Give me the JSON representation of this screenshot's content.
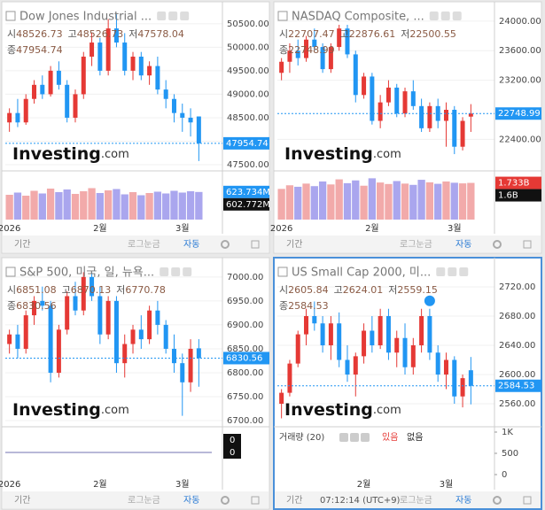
{
  "chart_data": [
    {
      "type": "candlestick",
      "title": "Dow Jones Industrial ...",
      "ohlc_names": [
        "시",
        "고",
        "저",
        "종"
      ],
      "ohlc_values": [
        48526.73,
        48526.73,
        47578.04,
        47954.74
      ],
      "categories": [
        "2026",
        null,
        null,
        null,
        null,
        null,
        null,
        null,
        null,
        null,
        null,
        "2월",
        null,
        null,
        null,
        null,
        null,
        null,
        null,
        null,
        null,
        "3월",
        null,
        null
      ],
      "open": [
        48400,
        48600,
        48400,
        48900,
        49200,
        49000,
        49500,
        49200,
        48500,
        49000,
        49800,
        50100,
        49500,
        50400,
        50100,
        49500,
        49800,
        49400,
        49600,
        49100,
        48900,
        48600,
        48500,
        48526.73
      ],
      "high": [
        48700,
        48900,
        49000,
        49300,
        49400,
        49600,
        49700,
        49300,
        49100,
        49900,
        50300,
        50200,
        50600,
        50700,
        50300,
        49900,
        49900,
        49700,
        49800,
        49300,
        49000,
        48800,
        48700,
        48526.73
      ],
      "low": [
        48200,
        48300,
        48350,
        48800,
        48900,
        48950,
        49100,
        48400,
        48400,
        48900,
        49600,
        49400,
        49400,
        50000,
        49400,
        49300,
        49300,
        49200,
        49000,
        48700,
        48400,
        48200,
        48100,
        47578.04
      ],
      "close": [
        48600,
        48400,
        48900,
        49200,
        49000,
        49500,
        49200,
        48500,
        49000,
        49800,
        50100,
        49500,
        50400,
        50100,
        49500,
        49800,
        49400,
        49600,
        49100,
        48900,
        48600,
        48500,
        48400,
        47954.74
      ],
      "ylim": [
        47425,
        50817
      ],
      "yticks": [
        {
          "value": 50500,
          "label": "50500.00"
        },
        {
          "value": 50000,
          "label": "50000.00"
        },
        {
          "value": 49500,
          "label": "49500.00"
        },
        {
          "value": 49000,
          "label": "49000.00"
        },
        {
          "value": 48500,
          "label": "48500.00"
        },
        {
          "value": 48000,
          "label": "48000.00"
        },
        {
          "value": 47500,
          "label": "47500.00"
        }
      ],
      "price_label": 47954.74,
      "price_label_color": "#2196f3",
      "up_color": "#e53935",
      "down_color": "#2196f3",
      "volume": [
        560000000,
        610000000,
        540000000,
        650000000,
        590000000,
        700000000,
        620000000,
        680000000,
        580000000,
        640000000,
        710000000,
        600000000,
        660000000,
        690000000,
        570000000,
        620000000,
        550000000,
        600000000,
        630000000,
        590000000,
        650000000,
        610000000,
        640000000,
        623734000
      ],
      "volume_ylim": [
        0,
        1100000000
      ],
      "volume_markers": [
        623734000,
        602772000
      ],
      "volume_marker_labels": [
        "623.734M",
        "602.772M"
      ],
      "volume_marker_colors": [
        "#2196f3",
        "#111111"
      ]
    },
    {
      "type": "candlestick",
      "title": "NASDAQ Composite, ...",
      "ohlc_names": [
        "시",
        "고",
        "저",
        "종"
      ],
      "ohlc_values": [
        22707.47,
        22876.61,
        22500.55,
        22748.99
      ],
      "categories": [
        "2026",
        null,
        null,
        null,
        null,
        null,
        null,
        null,
        null,
        null,
        null,
        "2월",
        null,
        null,
        null,
        null,
        null,
        null,
        null,
        null,
        null,
        "3월",
        null,
        null
      ],
      "open": [
        23300,
        23450,
        23600,
        23500,
        23750,
        23650,
        23350,
        23650,
        23900,
        23550,
        23000,
        23250,
        22650,
        22900,
        23100,
        22750,
        23050,
        22850,
        22550,
        22850,
        22650,
        22800,
        22300,
        22707.47
      ],
      "high": [
        23500,
        23700,
        23750,
        23800,
        23900,
        23700,
        23700,
        23950,
        23950,
        23600,
        23300,
        23300,
        23000,
        23200,
        23150,
        23100,
        23200,
        22950,
        22900,
        22950,
        22900,
        22850,
        22700,
        22876.61
      ],
      "low": [
        23200,
        23300,
        23400,
        23450,
        23600,
        23300,
        23300,
        23600,
        23500,
        22900,
        22950,
        22600,
        22550,
        22850,
        22700,
        22700,
        22800,
        22500,
        22500,
        22550,
        22300,
        22200,
        22250,
        22500.55
      ],
      "close": [
        23450,
        23600,
        23500,
        23750,
        23650,
        23350,
        23650,
        23900,
        23550,
        23000,
        23250,
        22650,
        22900,
        23100,
        22750,
        23050,
        22850,
        22550,
        22850,
        22650,
        22800,
        22300,
        22650,
        22748.99
      ],
      "ylim": [
        22009,
        24166
      ],
      "yticks": [
        {
          "value": 24000,
          "label": "24000.00"
        },
        {
          "value": 23600,
          "label": "23600.00"
        },
        {
          "value": 23200,
          "label": "23200.00"
        },
        {
          "value": 22400,
          "label": "22400.00"
        }
      ],
      "price_label": 22748.99,
      "price_label_color": "#2196f3",
      "up_color": "#e53935",
      "down_color": "#2196f3",
      "volume": [
        1450000000,
        1620000000,
        1550000000,
        1700000000,
        1580000000,
        1800000000,
        1660000000,
        1900000000,
        1720000000,
        1850000000,
        1600000000,
        1950000000,
        1750000000,
        1680000000,
        1820000000,
        1700000000,
        1640000000,
        1880000000,
        1760000000,
        1690000000,
        1800000000,
        1740000000,
        1710000000,
        1733000000
      ],
      "volume_ylim": [
        0,
        2300000000
      ],
      "volume_markers": [
        1733000000,
        1600000000
      ],
      "volume_marker_labels": [
        "1.733B",
        "1.6B"
      ],
      "volume_marker_colors": [
        "#e53935",
        "#111111"
      ]
    },
    {
      "type": "candlestick",
      "title": "S&P 500, 미국, 일, 뉴욕...",
      "ohlc_names": [
        "시",
        "고",
        "저",
        "종"
      ],
      "ohlc_values": [
        6851.08,
        6870.13,
        6770.78,
        6830.56
      ],
      "categories": [
        "2026",
        null,
        null,
        null,
        null,
        null,
        null,
        null,
        null,
        null,
        null,
        "2월",
        null,
        null,
        null,
        null,
        null,
        null,
        null,
        null,
        null,
        "3월",
        null,
        null
      ],
      "open": [
        6860,
        6880,
        6850,
        6920,
        6950,
        6940,
        6800,
        6890,
        6960,
        6930,
        7000,
        6960,
        6880,
        6950,
        6820,
        6860,
        6890,
        6870,
        6930,
        6900,
        6850,
        6820,
        6780,
        6851.08
      ],
      "high": [
        6890,
        6900,
        6930,
        6960,
        6980,
        6950,
        6900,
        6970,
        6990,
        7010,
        7010,
        6980,
        6960,
        6960,
        6880,
        6900,
        6920,
        6940,
        6950,
        6910,
        6880,
        6840,
        6870,
        6870.13
      ],
      "low": [
        6840,
        6830,
        6840,
        6900,
        6930,
        6780,
        6790,
        6880,
        6920,
        6920,
        6950,
        6860,
        6870,
        6800,
        6790,
        6840,
        6850,
        6860,
        6880,
        6840,
        6800,
        6710,
        6760,
        6770.78
      ],
      "close": [
        6880,
        6850,
        6920,
        6950,
        6940,
        6800,
        6890,
        6960,
        6930,
        7000,
        6960,
        6880,
        6950,
        6820,
        6860,
        6890,
        6870,
        6930,
        6900,
        6850,
        6820,
        6780,
        6850,
        6830.56
      ],
      "ylim": [
        6692.7,
        7025.6
      ],
      "yticks": [
        {
          "value": 7000,
          "label": "7000.00"
        },
        {
          "value": 6950,
          "label": "6950.00"
        },
        {
          "value": 6900,
          "label": "6900.00"
        },
        {
          "value": 6850,
          "label": "6850.00"
        },
        {
          "value": 6800,
          "label": "6800.00"
        },
        {
          "value": 6750,
          "label": "6750.00"
        },
        {
          "value": 6700,
          "label": "6700.00"
        }
      ],
      "price_label": 6830.56,
      "price_label_color": "#2196f3",
      "up_color": "#e53935",
      "down_color": "#2196f3",
      "indicator_values": [
        0,
        0
      ]
    },
    {
      "type": "candlestick",
      "title": "US Small Cap 2000, 미...",
      "ohlc_names": [
        "시",
        "고",
        "저",
        "종"
      ],
      "ohlc_values": [
        2605.84,
        2624.01,
        2559.15,
        2584.53
      ],
      "categories": [
        null,
        null,
        null,
        null,
        null,
        null,
        null,
        null,
        null,
        null,
        "2월",
        null,
        null,
        null,
        null,
        null,
        null,
        null,
        null,
        null,
        "3월",
        null,
        null,
        null
      ],
      "open": [
        2560,
        2575,
        2615,
        2655,
        2680,
        2670,
        2640,
        2670,
        2620,
        2600,
        2625,
        2660,
        2640,
        2680,
        2630,
        2650,
        2610,
        2640,
        2680,
        2630,
        2600,
        2620,
        2570,
        2605.84
      ],
      "high": [
        2580,
        2620,
        2660,
        2690,
        2700,
        2680,
        2680,
        2685,
        2640,
        2630,
        2670,
        2680,
        2690,
        2690,
        2660,
        2670,
        2650,
        2690,
        2690,
        2640,
        2630,
        2625,
        2600,
        2624.01
      ],
      "low": [
        2540,
        2570,
        2610,
        2640,
        2660,
        2630,
        2620,
        2610,
        2590,
        2570,
        2615,
        2630,
        2635,
        2620,
        2610,
        2600,
        2600,
        2630,
        2620,
        2590,
        2580,
        2560,
        2555,
        2559.15
      ],
      "close": [
        2575,
        2615,
        2655,
        2680,
        2670,
        2640,
        2670,
        2620,
        2600,
        2625,
        2660,
        2640,
        2680,
        2630,
        2650,
        2610,
        2640,
        2680,
        2630,
        2600,
        2620,
        2570,
        2595,
        2584.53
      ],
      "ylim": [
        2532.1,
        2750.3
      ],
      "yticks": [
        {
          "value": 2720,
          "label": "2720.00"
        },
        {
          "value": 2680,
          "label": "2680.00"
        },
        {
          "value": 2640,
          "label": "2640.00"
        },
        {
          "value": 2600,
          "label": "2600.00"
        },
        {
          "value": 2560,
          "label": "2560.00"
        }
      ],
      "price_label": 2584.53,
      "price_label_color": "#2196f3",
      "up_color": "#e53935",
      "down_color": "#2196f3",
      "volume_legend": "거래량 (20)",
      "volume_flags": [
        "있음",
        "없음"
      ],
      "volume_ylim": [
        0,
        1104
      ],
      "volume_ticks": [
        {
          "value": 1000,
          "label": "1K"
        },
        500,
        0
      ]
    }
  ],
  "watermark": [
    "Investing",
    ".com"
  ],
  "ui": {
    "period": "기간",
    "log": "로그눈금",
    "auto": "자동",
    "time": "07:12:14 (UTC+9)"
  }
}
